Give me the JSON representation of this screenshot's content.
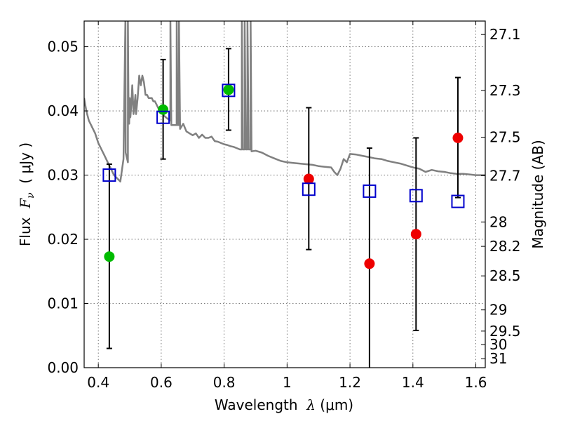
{
  "chart_data": {
    "type": "scatter",
    "xlim": [
      0.355,
      1.63
    ],
    "ylim": [
      0.0,
      0.054
    ],
    "grid": true,
    "x_ticks": [
      0.4,
      0.6,
      0.8,
      1.0,
      1.2,
      1.4,
      1.6
    ],
    "x_tick_labels": [
      "0.4",
      "0.6",
      "0.8",
      "1",
      "1.2",
      "1.4",
      "1.6"
    ],
    "y_ticks": [
      0.0,
      0.01,
      0.02,
      0.03,
      0.04,
      0.05
    ],
    "y_tick_labels": [
      "0.00",
      "0.01",
      "0.02",
      "0.03",
      "0.04",
      "0.05"
    ],
    "xlabel": {
      "prefix": "Wavelength  ",
      "symbol": "λ",
      "suffix": " (μm)"
    },
    "ylabel": {
      "prefix": "Flux  ",
      "symbol": "F",
      "subscript": "ν",
      "suffix": "  ( μJy )"
    },
    "y2label": "Magnitude (AB)",
    "y2_ticks": [
      {
        "label": "27.1",
        "flux": 0.0519
      },
      {
        "label": "27.3",
        "flux": 0.0432
      },
      {
        "label": "27.5",
        "flux": 0.0359
      },
      {
        "label": "27.7",
        "flux": 0.0299
      },
      {
        "label": "28",
        "flux": 0.0227
      },
      {
        "label": "28.2",
        "flux": 0.0189
      },
      {
        "label": "28.5",
        "flux": 0.0143
      },
      {
        "label": "29",
        "flux": 0.009
      },
      {
        "label": "29.5",
        "flux": 0.0057
      },
      {
        "label": "30",
        "flux": 0.0036
      },
      {
        "label": "31",
        "flux": 0.0014
      }
    ],
    "colors": {
      "model": "#808080",
      "green": "#00bb00",
      "red": "#ee0000",
      "square": "#0000cc",
      "error": "#000000",
      "grid": "#555555"
    },
    "series": [
      {
        "marker": "circle-green",
        "x": [
          0.435,
          0.606,
          0.814
        ],
        "y": [
          0.0173,
          0.0402,
          0.0433
        ],
        "err_low": [
          0.003,
          0.0325,
          0.037
        ],
        "err_high": [
          0.0317,
          0.048,
          0.0497
        ]
      },
      {
        "marker": "circle-red",
        "x": [
          1.069,
          1.262,
          1.41,
          1.543
        ],
        "y": [
          0.0294,
          0.0162,
          0.0208,
          0.0358
        ],
        "err_low": [
          0.0184,
          0.0,
          0.0058,
          0.0265
        ],
        "err_high": [
          0.0405,
          0.0342,
          0.0358,
          0.0452
        ]
      },
      {
        "marker": "square-blue",
        "x": [
          0.435,
          0.606,
          0.814,
          1.069,
          1.262,
          1.41,
          1.543
        ],
        "y": [
          0.03,
          0.039,
          0.0432,
          0.0278,
          0.0275,
          0.0268,
          0.0259
        ]
      }
    ],
    "model_spectrum": {
      "x": [
        0.355,
        0.362,
        0.37,
        0.38,
        0.39,
        0.4,
        0.41,
        0.42,
        0.43,
        0.44,
        0.45,
        0.46,
        0.47,
        0.48,
        0.486,
        0.4862,
        0.487,
        0.494,
        0.4942,
        0.496,
        0.498,
        0.5,
        0.502,
        0.505,
        0.508,
        0.51,
        0.512,
        0.515,
        0.518,
        0.52,
        0.525,
        0.53,
        0.535,
        0.54,
        0.545,
        0.55,
        0.555,
        0.56,
        0.565,
        0.57,
        0.575,
        0.58,
        0.585,
        0.59,
        0.595,
        0.6,
        0.61,
        0.62,
        0.629,
        0.6292,
        0.632,
        0.64,
        0.649,
        0.6492,
        0.652,
        0.6562,
        0.6564,
        0.66,
        0.67,
        0.68,
        0.69,
        0.7,
        0.71,
        0.72,
        0.73,
        0.74,
        0.75,
        0.76,
        0.77,
        0.78,
        0.79,
        0.8,
        0.81,
        0.82,
        0.83,
        0.84,
        0.85,
        0.856,
        0.8562,
        0.859,
        0.865,
        0.8652,
        0.869,
        0.874,
        0.8742,
        0.878,
        0.884,
        0.8842,
        0.887,
        0.9,
        0.92,
        0.94,
        0.96,
        0.98,
        1.0,
        1.02,
        1.04,
        1.06,
        1.08,
        1.1,
        1.12,
        1.14,
        1.15,
        1.16,
        1.17,
        1.18,
        1.19,
        1.2,
        1.22,
        1.24,
        1.26,
        1.28,
        1.3,
        1.32,
        1.34,
        1.36,
        1.38,
        1.4,
        1.42,
        1.44,
        1.46,
        1.48,
        1.5,
        1.52,
        1.54,
        1.56,
        1.58,
        1.6,
        1.63
      ],
      "y": [
        0.042,
        0.04,
        0.0385,
        0.0375,
        0.0365,
        0.035,
        0.034,
        0.033,
        0.032,
        0.031,
        0.03,
        0.0295,
        0.029,
        0.0325,
        0.054,
        0.054,
        0.0335,
        0.032,
        0.054,
        0.0405,
        0.038,
        0.042,
        0.039,
        0.041,
        0.044,
        0.042,
        0.0395,
        0.041,
        0.0425,
        0.0395,
        0.042,
        0.0455,
        0.044,
        0.0455,
        0.0445,
        0.0425,
        0.0425,
        0.042,
        0.042,
        0.042,
        0.0415,
        0.0415,
        0.041,
        0.0405,
        0.04,
        0.04,
        0.0392,
        0.0388,
        0.0385,
        0.054,
        0.0378,
        0.0378,
        0.0378,
        0.054,
        0.0378,
        0.0378,
        0.054,
        0.0372,
        0.038,
        0.0368,
        0.0365,
        0.0362,
        0.0365,
        0.0358,
        0.0363,
        0.0358,
        0.0358,
        0.036,
        0.0353,
        0.0352,
        0.035,
        0.0348,
        0.0347,
        0.0345,
        0.0344,
        0.0342,
        0.034,
        0.034,
        0.054,
        0.034,
        0.034,
        0.054,
        0.034,
        0.034,
        0.054,
        0.034,
        0.034,
        0.054,
        0.0337,
        0.0338,
        0.0335,
        0.033,
        0.0326,
        0.0322,
        0.032,
        0.0319,
        0.0318,
        0.0317,
        0.0316,
        0.0314,
        0.0313,
        0.0312,
        0.0305,
        0.03,
        0.031,
        0.0325,
        0.032,
        0.0333,
        0.0332,
        0.033,
        0.0328,
        0.0326,
        0.0325,
        0.0322,
        0.032,
        0.0318,
        0.0315,
        0.0312,
        0.031,
        0.0305,
        0.0308,
        0.0306,
        0.0305,
        0.0303,
        0.0302,
        0.0302,
        0.0301,
        0.03,
        0.03
      ]
    }
  }
}
